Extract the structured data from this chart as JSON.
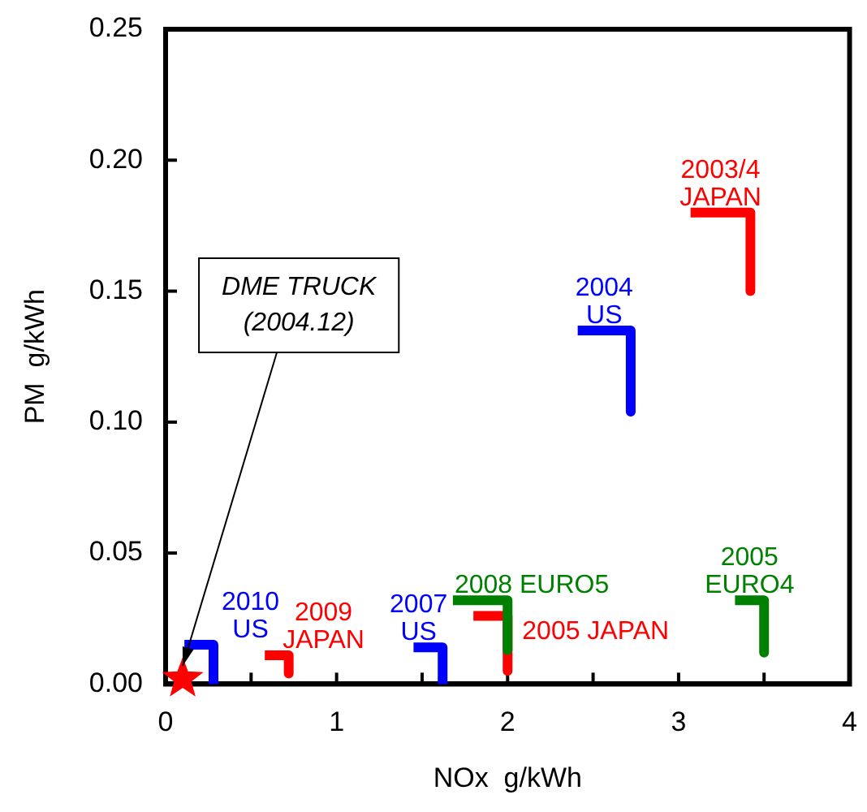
{
  "chart_data": {
    "type": "line",
    "xlabel": "NOx  g/kWh",
    "ylabel": "PM  g/kWh",
    "xlim": [
      0,
      4
    ],
    "xticks": [
      0,
      {
        "value": 0.5,
        "label": null
      },
      1,
      {
        "value": 1.5,
        "label": null
      },
      2,
      {
        "value": 2.5,
        "label": null
      },
      3,
      {
        "value": 3.5,
        "label": null
      },
      4
    ],
    "ylim": [
      0,
      0.25
    ],
    "yticks": [
      {
        "value": 0,
        "label": "0.00"
      },
      {
        "value": 0.05,
        "label": "0.05"
      },
      {
        "value": 0.1,
        "label": "0.10"
      },
      {
        "value": 0.15,
        "label": "0.15"
      },
      {
        "value": 0.2,
        "label": "0.20"
      },
      {
        "value": 0.25,
        "label": "0.25"
      }
    ],
    "grid": false,
    "legend": false,
    "marker": "none",
    "line_style": "solid",
    "series": [
      {
        "name": "2003/4\nJAPAN",
        "color": "#ff0000",
        "x": [
          3.07,
          3.42,
          3.42
        ],
        "values": [
          0.18,
          0.18,
          0.15
        ]
      },
      {
        "name": "2004\nUS",
        "color": "#0000ff",
        "x": [
          2.41,
          2.72,
          2.72
        ],
        "values": [
          0.135,
          0.135,
          0.104
        ]
      },
      {
        "name": "2005\nEURO4",
        "color": "#008000",
        "x": [
          3.33,
          3.5,
          3.5
        ],
        "values": [
          0.032,
          0.032,
          0.012
        ]
      },
      {
        "name": "2008 EURO5",
        "color": "#008000",
        "x": [
          1.68,
          2.0,
          2.0
        ],
        "values": [
          0.032,
          0.032,
          0.013
        ]
      },
      {
        "name": "2005 JAPAN",
        "color": "#ff0000",
        "x": [
          1.8,
          2.0,
          2.0
        ],
        "values": [
          0.026,
          0.026,
          0.005
        ]
      },
      {
        "name": "2007\nUS",
        "color": "#0000ff",
        "x": [
          1.45,
          1.62,
          1.62
        ],
        "values": [
          0.014,
          0.014,
          0
        ]
      },
      {
        "name": "2009\nJAPAN",
        "color": "#ff0000",
        "x": [
          0.58,
          0.72,
          0.72
        ],
        "values": [
          0.011,
          0.011,
          0.004
        ]
      },
      {
        "name": "2010\nUS",
        "color": "#0000ff",
        "x": [
          0.11,
          0.28,
          0.28
        ],
        "values": [
          0.015,
          0.015,
          0
        ]
      },
      {
        "type": "scatter",
        "marker": "star",
        "color": "#ff0000",
        "x": [
          0.1
        ],
        "values": [
          0.002
        ]
      }
    ],
    "annotations": [
      {
        "text": "DME TRUCK\n(2004.12)",
        "x": 0.1,
        "y": 0.002
      }
    ]
  }
}
